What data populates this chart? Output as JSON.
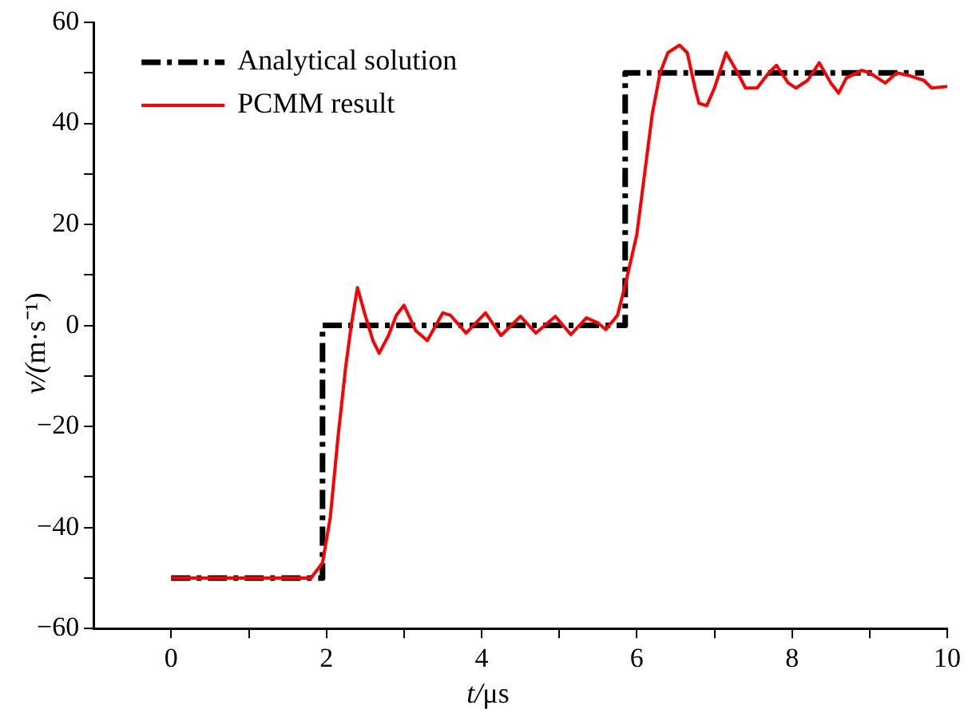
{
  "chart_data": {
    "type": "line",
    "xlabel": "t/μs",
    "ylabel": "v/(m·s⁻¹)",
    "xlim": [
      -1,
      10
    ],
    "ylim": [
      -60,
      60
    ],
    "xticks": [
      0,
      {
        "value": 1,
        "label": null
      },
      2,
      {
        "value": 3,
        "label": null
      },
      4,
      {
        "value": 5,
        "label": null
      },
      6,
      {
        "value": 7,
        "label": null
      },
      8,
      {
        "value": 9,
        "label": null
      },
      10
    ],
    "yticks": [
      -60,
      {
        "value": -50,
        "label": null
      },
      -40,
      {
        "value": -30,
        "label": null
      },
      -20,
      {
        "value": -10,
        "label": null
      },
      0,
      {
        "value": 10,
        "label": null
      },
      20,
      {
        "value": 30,
        "label": null
      },
      40,
      {
        "value": 50,
        "label": null
      },
      60
    ],
    "grid": false,
    "legend": "top left",
    "marker": "none",
    "series": [
      {
        "name": "Analytical solution",
        "color": "#000000",
        "line_style": "dashed",
        "x": [
          0,
          1.95,
          1.95,
          5.85,
          5.85,
          9.7
        ],
        "values": [
          -50,
          -50,
          0,
          0,
          50,
          50
        ]
      },
      {
        "name": "PCMM result",
        "color": "#ff0000",
        "line_style": "solid",
        "x": [
          0,
          1.8,
          1.95,
          2.05,
          2.15,
          2.25,
          2.32,
          2.4,
          2.5,
          2.6,
          2.68,
          2.8,
          2.9,
          3.0,
          3.15,
          3.3,
          3.5,
          3.6,
          3.8,
          4.05,
          4.25,
          4.5,
          4.7,
          4.95,
          5.15,
          5.35,
          5.5,
          5.6,
          5.75,
          5.85,
          6.0,
          6.1,
          6.2,
          6.3,
          6.4,
          6.55,
          6.65,
          6.75,
          6.8,
          6.9,
          7.0,
          7.15,
          7.3,
          7.4,
          7.55,
          7.7,
          7.8,
          7.95,
          8.05,
          8.2,
          8.35,
          8.5,
          8.6,
          8.7,
          8.9,
          9.0,
          9.2,
          9.35,
          9.5,
          9.7,
          9.8,
          10
        ],
        "values": [
          -50,
          -50,
          -47,
          -38,
          -22,
          -8,
          0,
          7.5,
          2,
          -3,
          -5.5,
          -2,
          2,
          4,
          -1,
          -3,
          2.5,
          2,
          -1.5,
          2.5,
          -2,
          1.8,
          -1.5,
          1.8,
          -1.8,
          1.5,
          0.5,
          -0.8,
          2,
          8,
          18,
          30,
          42,
          50,
          54,
          55.5,
          54,
          47,
          44,
          43.5,
          47,
          54,
          50,
          47,
          47,
          50,
          51.5,
          48,
          47,
          48.5,
          52,
          48,
          46,
          49,
          50.5,
          50,
          48,
          50,
          49.5,
          48.5,
          47,
          47.3
        ]
      }
    ]
  }
}
